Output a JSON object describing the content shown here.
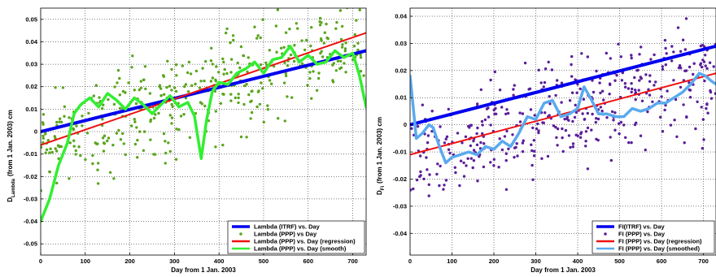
{
  "chart_data": [
    {
      "type": "scatter",
      "xlabel": "Day from 1 Jan. 2003",
      "ylabel_main": "D",
      "ylabel_sub": "Lambda",
      "ylabel_rest": "(from 1 Jan. 2003)   cm",
      "xlim": [
        0,
        730
      ],
      "ylim": [
        -0.055,
        0.055
      ],
      "xticks": [
        0,
        100,
        200,
        300,
        400,
        500,
        600,
        700
      ],
      "yticks": [
        -0.05,
        -0.04,
        -0.03,
        -0.02,
        -0.01,
        0,
        0.01,
        0.02,
        0.03,
        0.04,
        0.05
      ],
      "ytick_labels": [
        "-0.05",
        "-0.04",
        "-0.03",
        "-0.02",
        "-0.01",
        "0",
        "0.01",
        "0.02",
        "0.03",
        "0.04",
        "0.05"
      ],
      "grid": true,
      "legend_position": "bottom-right",
      "series": [
        {
          "name": "Lambda (ITRF) vs. Day",
          "kind": "line",
          "color": "#0000ee",
          "x": [
            0,
            730
          ],
          "y": [
            0.0,
            0.036
          ]
        },
        {
          "name": "Lambda (PPP) vs Day",
          "kind": "points",
          "color": "#5aa51e",
          "seed_params": {
            "count": 420,
            "trend_start": -0.006,
            "trend_end": 0.044,
            "spread": 0.016,
            "seed": 7
          }
        },
        {
          "name": "Lambda (PPP) vs. Day (regression)",
          "kind": "line",
          "color": "#ee1111",
          "x": [
            0,
            730
          ],
          "y": [
            -0.006,
            0.044
          ]
        },
        {
          "name": "Lambda (PPP) vs. Day (smooth)",
          "kind": "line",
          "color": "#33ee33",
          "x": [
            0,
            20,
            40,
            60,
            75,
            90,
            110,
            130,
            150,
            170,
            190,
            210,
            230,
            250,
            270,
            290,
            310,
            330,
            345,
            360,
            372,
            385,
            400,
            420,
            440,
            460,
            480,
            500,
            520,
            540,
            560,
            580,
            600,
            620,
            640,
            660,
            680,
            700,
            715,
            730
          ],
          "y": [
            -0.04,
            -0.03,
            -0.015,
            -0.005,
            0.008,
            0.012,
            0.015,
            0.011,
            0.017,
            0.014,
            0.01,
            0.015,
            0.012,
            0.008,
            0.012,
            0.016,
            0.011,
            0.013,
            0.007,
            -0.012,
            0.005,
            0.018,
            0.022,
            0.021,
            0.026,
            0.028,
            0.031,
            0.026,
            0.032,
            0.033,
            0.038,
            0.031,
            0.034,
            0.03,
            0.031,
            0.036,
            0.033,
            0.035,
            0.025,
            0.011
          ]
        }
      ]
    },
    {
      "type": "scatter",
      "xlabel": "Day from 1 Jan. 2003",
      "ylabel_main": "D",
      "ylabel_sub": "Fi",
      "ylabel_rest": "(from 1 Jan. 2003)   cm",
      "xlim": [
        0,
        730
      ],
      "ylim": [
        -0.048,
        0.043
      ],
      "xticks": [
        0,
        100,
        200,
        300,
        400,
        500,
        600,
        700
      ],
      "yticks": [
        -0.04,
        -0.03,
        -0.02,
        -0.01,
        0,
        0.01,
        0.02,
        0.03,
        0.04
      ],
      "ytick_labels": [
        "-0.04",
        "-0.03",
        "-0.02",
        "-0.01",
        "0",
        "0.01",
        "0.02",
        "0.03",
        "0.04"
      ],
      "grid": true,
      "legend_position": "bottom-right",
      "series": [
        {
          "name": "FI(ITRF) vs.  Day",
          "kind": "line",
          "color": "#0000ee",
          "x": [
            0,
            730
          ],
          "y": [
            0.0,
            0.029
          ]
        },
        {
          "name": "FI (PPP) vs. Day",
          "kind": "points",
          "color": "#5a1e9a",
          "seed_params": {
            "count": 420,
            "trend_start": -0.011,
            "trend_end": 0.019,
            "spread": 0.013,
            "seed": 13
          }
        },
        {
          "name": "FI (PPP) vs. Day (regression)",
          "kind": "line",
          "color": "#ee1111",
          "x": [
            0,
            730
          ],
          "y": [
            -0.011,
            0.019
          ]
        },
        {
          "name": "FI (PPP) vs. Day  (smoothed)",
          "kind": "line",
          "color": "#5aaaee",
          "x": [
            0,
            15,
            30,
            45,
            55,
            70,
            85,
            100,
            120,
            140,
            160,
            180,
            200,
            220,
            240,
            260,
            280,
            300,
            320,
            340,
            360,
            380,
            400,
            415,
            430,
            450,
            470,
            490,
            510,
            530,
            550,
            570,
            590,
            610,
            630,
            650,
            670,
            690,
            705,
            720,
            730
          ],
          "y": [
            0.018,
            -0.005,
            -0.003,
            0.0,
            -0.001,
            -0.008,
            -0.014,
            -0.012,
            -0.011,
            -0.01,
            -0.011,
            -0.008,
            -0.009,
            -0.006,
            -0.008,
            -0.003,
            0.003,
            0.002,
            0.008,
            0.009,
            0.003,
            0.004,
            0.006,
            0.014,
            0.01,
            0.004,
            0.004,
            0.003,
            0.003,
            0.006,
            0.005,
            0.006,
            0.008,
            0.008,
            0.01,
            0.012,
            0.015,
            0.019,
            0.018,
            0.016,
            0.015
          ]
        }
      ]
    }
  ]
}
